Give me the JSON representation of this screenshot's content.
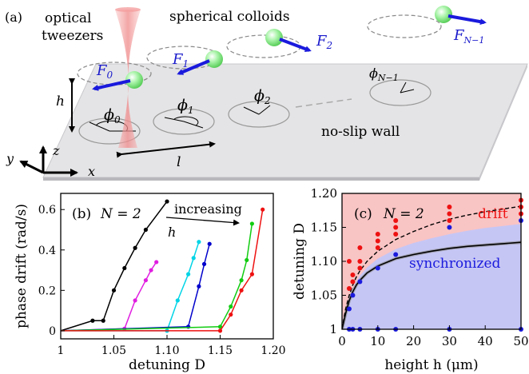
{
  "panel_a": {
    "label": "(a)",
    "tweezers_label_line1": "optical",
    "tweezers_label_line2": "tweezers",
    "colloids_label": "spherical colloids",
    "wall_label": "no-slip wall",
    "height_symbol": "h",
    "spacing_symbol": "l",
    "axis_x": "x",
    "axis_y": "y",
    "axis_z": "z",
    "force_labels": [
      "F",
      "F",
      "F",
      "F"
    ],
    "force_subscripts": [
      "0",
      "1",
      "2",
      "N−1"
    ],
    "phase_symbol": "ϕ",
    "phase_subscripts": [
      "0",
      "1",
      "2",
      "N−1"
    ],
    "colors": {
      "wall": "#e2e2e4",
      "colloid": "#9ff09f",
      "beam": "#f4a3a3",
      "force": "#1a1add"
    }
  },
  "panel_b": {
    "label": "(b)",
    "n_label": "N = 2",
    "arrow_label_line1": "increasing",
    "arrow_label_line2": "h",
    "chart_data": {
      "type": "line",
      "xlabel": "detuning D",
      "ylabel": "phase drift (rad/s)",
      "xlim": [
        1.0,
        1.2
      ],
      "ylim": [
        -0.04,
        0.68
      ],
      "x_ticks": [
        "1",
        "1.05",
        "1.10",
        "1.15",
        "1.20"
      ],
      "y_ticks": [
        "0",
        "0.2",
        "0.4",
        "0.6"
      ],
      "series": [
        {
          "color": "#000000",
          "x": [
            1.0,
            1.03,
            1.04,
            1.05,
            1.06,
            1.07,
            1.08,
            1.1
          ],
          "y": [
            0.0,
            0.05,
            0.05,
            0.2,
            0.31,
            0.41,
            0.5,
            0.64
          ]
        },
        {
          "color": "#e01ee0",
          "x": [
            1.0,
            1.06,
            1.07,
            1.08,
            1.085,
            1.09
          ],
          "y": [
            0.0,
            0.01,
            0.15,
            0.25,
            0.3,
            0.34
          ]
        },
        {
          "color": "#00d4e6",
          "x": [
            1.0,
            1.1,
            1.11,
            1.12,
            1.125,
            1.13
          ],
          "y": [
            0.0,
            0.0,
            0.15,
            0.28,
            0.36,
            0.44
          ]
        },
        {
          "color": "#0000cc",
          "x": [
            1.0,
            1.12,
            1.13,
            1.135,
            1.14
          ],
          "y": [
            0.0,
            0.02,
            0.22,
            0.33,
            0.43
          ]
        },
        {
          "color": "#11cc11",
          "x": [
            1.0,
            1.15,
            1.16,
            1.17,
            1.175,
            1.18
          ],
          "y": [
            0.0,
            0.02,
            0.12,
            0.25,
            0.35,
            0.53
          ]
        },
        {
          "color": "#ee1111",
          "x": [
            1.0,
            1.15,
            1.16,
            1.17,
            1.18,
            1.19
          ],
          "y": [
            0.0,
            0.0,
            0.08,
            0.2,
            0.28,
            0.6
          ]
        }
      ]
    }
  },
  "panel_c": {
    "label": "(c)",
    "n_label": "N = 2",
    "drift_label": "drift",
    "sync_label": "synchronized",
    "colors": {
      "drift_region": "#f9c4c4",
      "sync_region": "#c6c6f5",
      "drift_points": "#ee1111",
      "sync_points": "#1a1add"
    },
    "chart_data": {
      "type": "scatter",
      "xlabel": "height h (μm)",
      "ylabel": "detuning D",
      "xlim": [
        0,
        50
      ],
      "ylim": [
        1.0,
        1.2
      ],
      "x_ticks": [
        "0",
        "10",
        "20",
        "30",
        "40",
        "50"
      ],
      "y_ticks": [
        "1",
        "1.05",
        "1.10",
        "1.15",
        "1.20"
      ],
      "drift_points": [
        {
          "x": 2,
          "y": 1.06
        },
        {
          "x": 2,
          "y": 1.1
        },
        {
          "x": 3,
          "y": 1.07
        },
        {
          "x": 3,
          "y": 1.08
        },
        {
          "x": 5,
          "y": 1.09
        },
        {
          "x": 5,
          "y": 1.1
        },
        {
          "x": 5,
          "y": 1.12
        },
        {
          "x": 10,
          "y": 1.12
        },
        {
          "x": 10,
          "y": 1.13
        },
        {
          "x": 10,
          "y": 1.14
        },
        {
          "x": 15,
          "y": 1.14
        },
        {
          "x": 15,
          "y": 1.15
        },
        {
          "x": 15,
          "y": 1.16
        },
        {
          "x": 30,
          "y": 1.16
        },
        {
          "x": 30,
          "y": 1.17
        },
        {
          "x": 30,
          "y": 1.18
        },
        {
          "x": 50,
          "y": 1.17
        },
        {
          "x": 50,
          "y": 1.18
        },
        {
          "x": 50,
          "y": 1.19
        }
      ],
      "sync_points": [
        {
          "x": 2,
          "y": 1.0
        },
        {
          "x": 2,
          "y": 1.03
        },
        {
          "x": 3,
          "y": 1.0
        },
        {
          "x": 3,
          "y": 1.05
        },
        {
          "x": 5,
          "y": 1.0
        },
        {
          "x": 5,
          "y": 1.07
        },
        {
          "x": 10,
          "y": 1.0
        },
        {
          "x": 10,
          "y": 1.09
        },
        {
          "x": 15,
          "y": 1.0
        },
        {
          "x": 15,
          "y": 1.11
        },
        {
          "x": 30,
          "y": 1.0
        },
        {
          "x": 30,
          "y": 1.15
        },
        {
          "x": 50,
          "y": 1.0
        },
        {
          "x": 50,
          "y": 1.16
        }
      ],
      "solid_curve": {
        "x": [
          0,
          1,
          2,
          3,
          4,
          5,
          7,
          10,
          15,
          20,
          25,
          30,
          35,
          40,
          45,
          50
        ],
        "y": [
          1.0,
          1.023,
          1.042,
          1.055,
          1.065,
          1.072,
          1.083,
          1.093,
          1.104,
          1.11,
          1.115,
          1.119,
          1.122,
          1.124,
          1.126,
          1.128
        ]
      },
      "dashed_curve": {
        "x": [
          0,
          1,
          2,
          3,
          4,
          5,
          7,
          10,
          15,
          20,
          25,
          30,
          35,
          40,
          45,
          50
        ],
        "y": [
          1.0,
          1.03,
          1.05,
          1.065,
          1.077,
          1.086,
          1.1,
          1.115,
          1.132,
          1.144,
          1.154,
          1.162,
          1.168,
          1.173,
          1.177,
          1.181
        ]
      },
      "boundary_curve": {
        "x": [
          0,
          1,
          2,
          3,
          4,
          5,
          7,
          10,
          15,
          20,
          25,
          30,
          35,
          40,
          45,
          50
        ],
        "y": [
          1.0,
          1.028,
          1.046,
          1.06,
          1.071,
          1.079,
          1.091,
          1.104,
          1.118,
          1.127,
          1.134,
          1.14,
          1.145,
          1.149,
          1.152,
          1.155
        ]
      }
    }
  }
}
